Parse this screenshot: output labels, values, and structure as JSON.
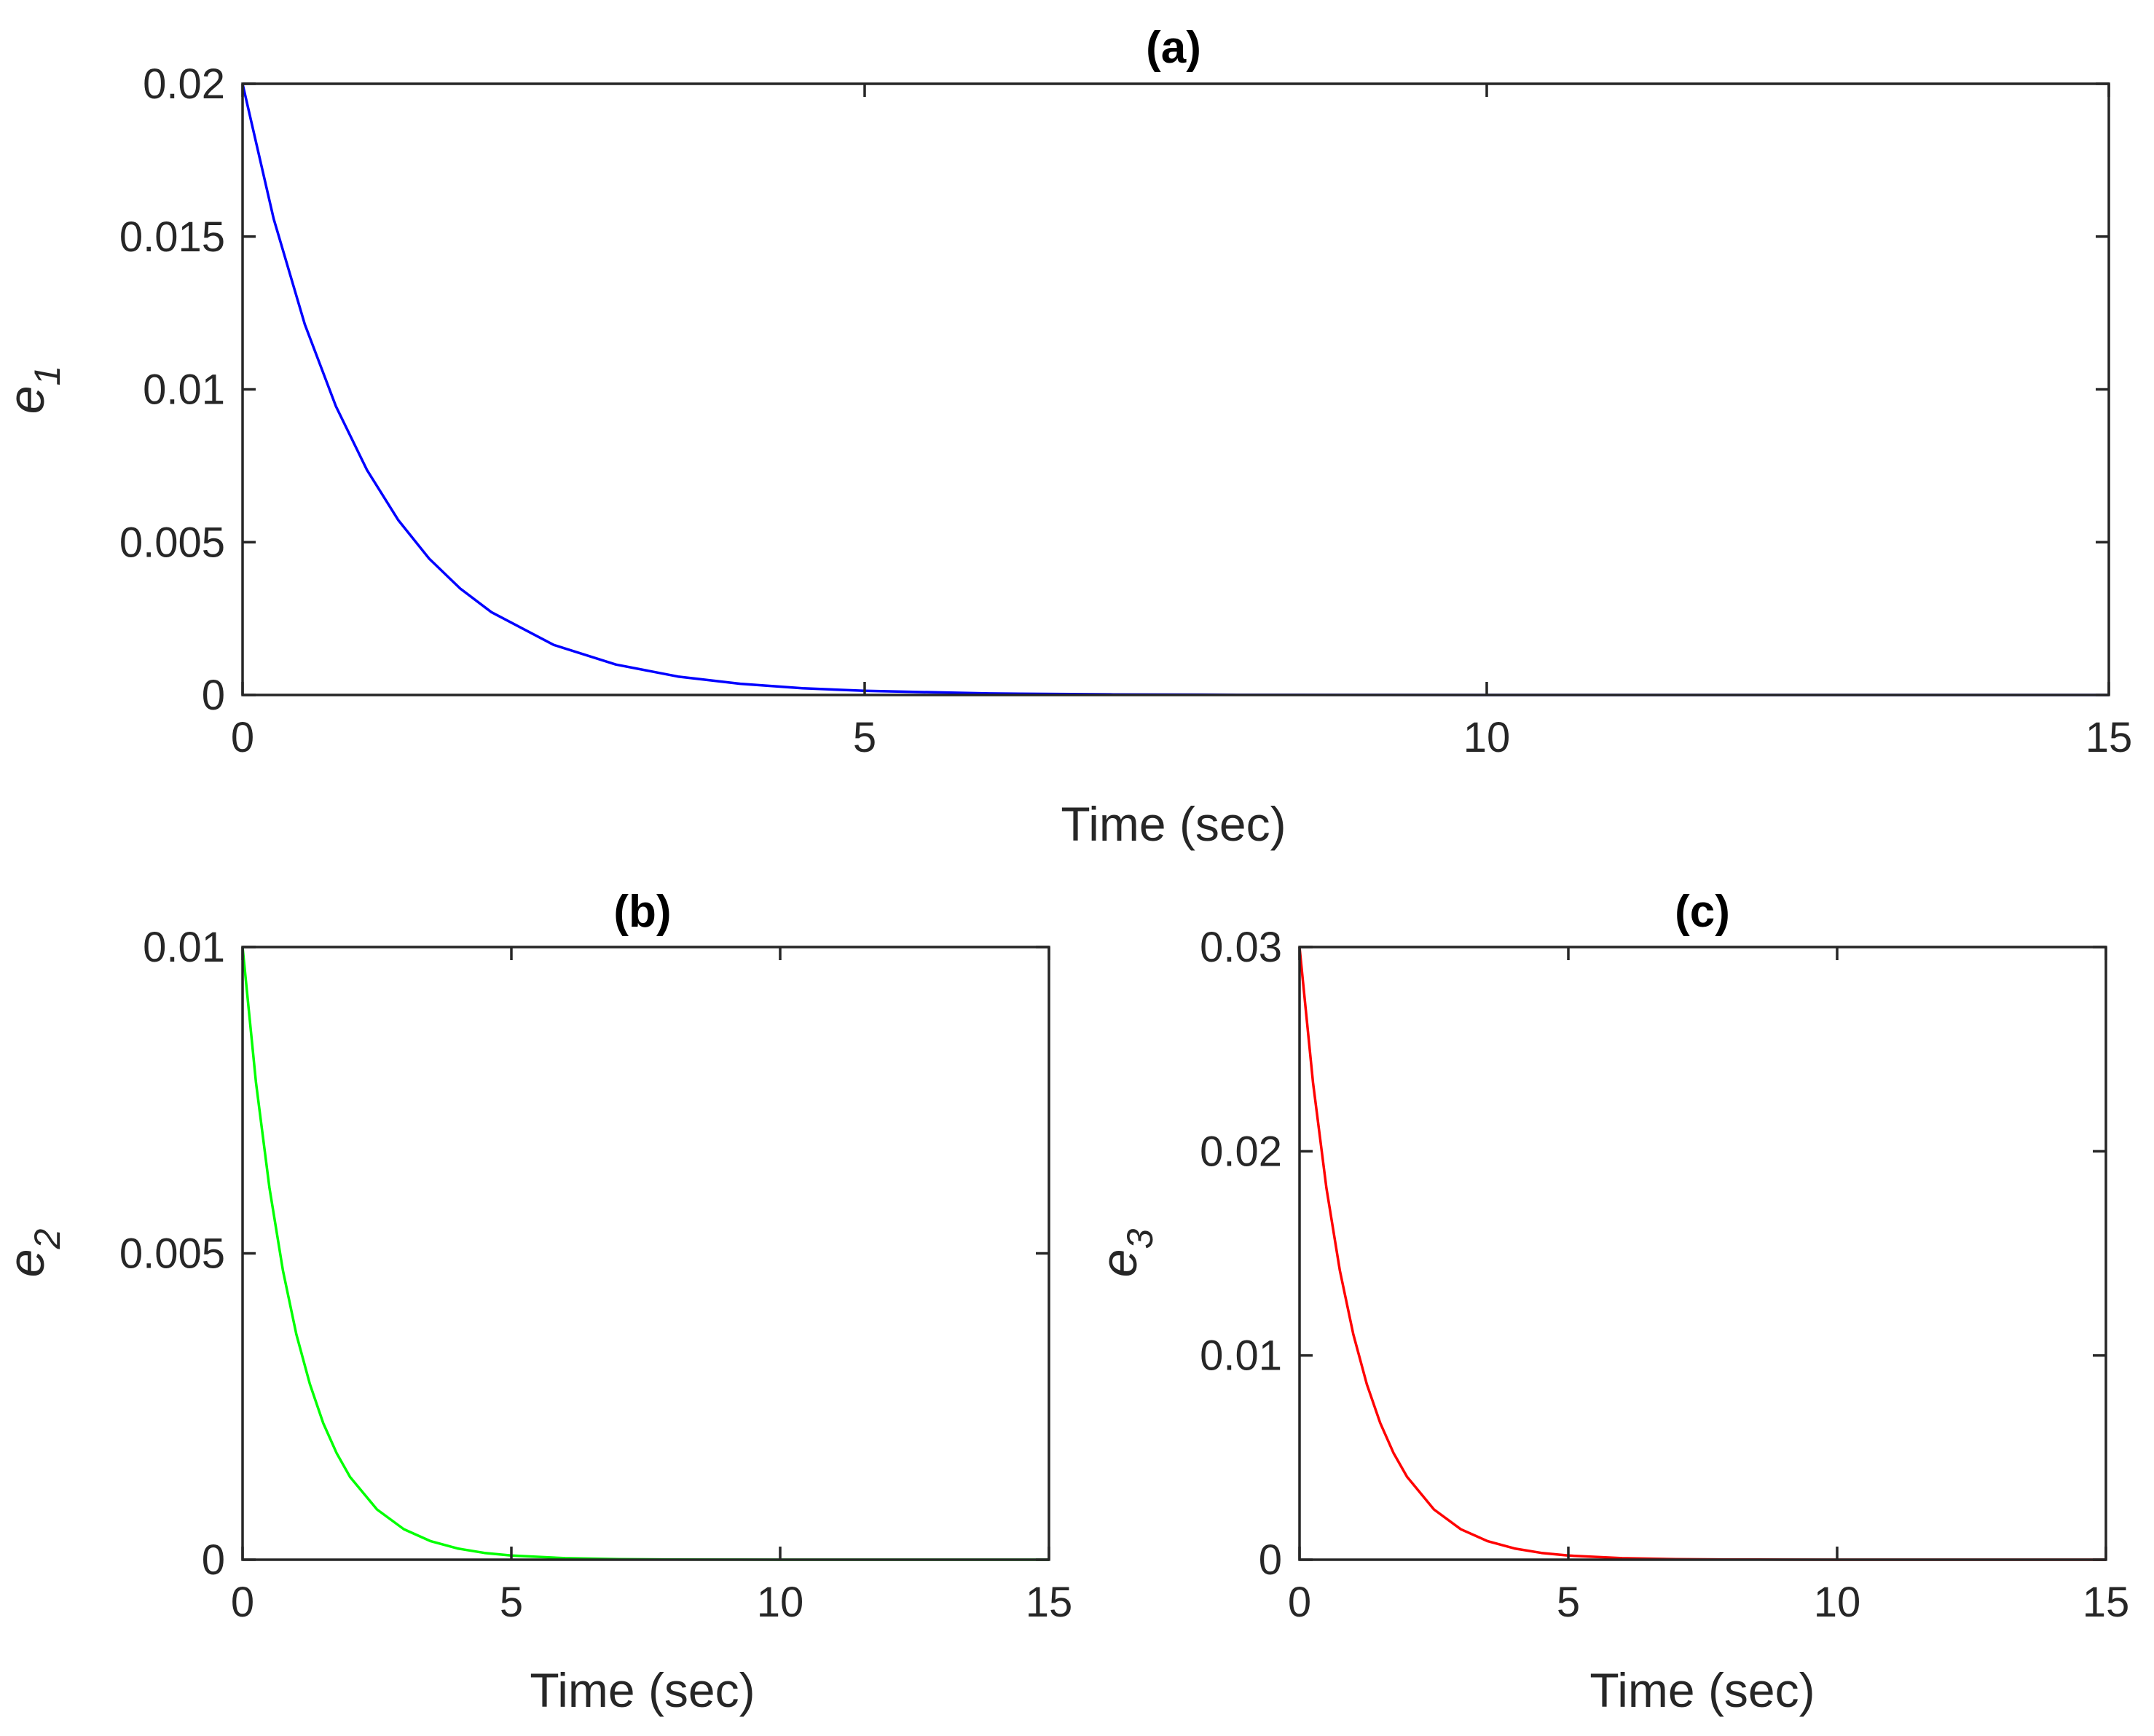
{
  "chart_data": [
    {
      "type": "line",
      "id": "a",
      "title": "(a)",
      "xlabel": "Time (sec)",
      "ylabel": {
        "base": "e",
        "sub": "1"
      },
      "xlim": [
        0,
        15
      ],
      "ylim": [
        0,
        0.02
      ],
      "xticks": [
        0,
        5,
        10,
        15
      ],
      "xtick_labels": [
        "0",
        "5",
        "10",
        "15"
      ],
      "yticks": [
        0,
        0.005,
        0.01,
        0.015,
        0.02
      ],
      "ytick_labels": [
        "0",
        "0.005",
        "0.01",
        "0.015",
        "0.02"
      ],
      "grid": false,
      "series": [
        {
          "name": "e1",
          "color": "#0000ff",
          "x": [
            0,
            0.25,
            0.5,
            0.75,
            1,
            1.25,
            1.5,
            1.75,
            2,
            2.5,
            3,
            3.5,
            4,
            4.5,
            5,
            6,
            7,
            8,
            9,
            10,
            11,
            12,
            13,
            14,
            15
          ],
          "y": [
            0.02,
            0.01558,
            0.01213,
            0.00945,
            0.00736,
            0.00573,
            0.00446,
            0.00348,
            0.00271,
            0.00164,
            0.000996,
            0.000604,
            0.000366,
            0.000222,
            0.000135,
            4.96e-05,
            1.82e-05,
            6.7e-06,
            2.5e-06,
            9e-07,
            3e-07,
            1e-07,
            0.0,
            0.0,
            0.0
          ]
        }
      ]
    },
    {
      "type": "line",
      "id": "b",
      "title": "(b)",
      "xlabel": "Time (sec)",
      "ylabel": {
        "base": "e",
        "sub": "2"
      },
      "xlim": [
        0,
        15
      ],
      "ylim": [
        0,
        0.01
      ],
      "xticks": [
        0,
        5,
        10,
        15
      ],
      "xtick_labels": [
        "0",
        "5",
        "10",
        "15"
      ],
      "yticks": [
        0,
        0.005,
        0.01
      ],
      "ytick_labels": [
        "0",
        "0.005",
        "0.01"
      ],
      "grid": false,
      "series": [
        {
          "name": "e2",
          "color": "#00ff00",
          "x": [
            0,
            0.25,
            0.5,
            0.75,
            1,
            1.25,
            1.5,
            1.75,
            2,
            2.5,
            3,
            3.5,
            4,
            4.5,
            5,
            6,
            7,
            8,
            9,
            10,
            11,
            12,
            13,
            14,
            15
          ],
          "y": [
            0.01,
            0.00779,
            0.00607,
            0.00472,
            0.00368,
            0.00287,
            0.00223,
            0.00174,
            0.00135,
            0.00082,
            0.000498,
            0.000302,
            0.000183,
            0.000111,
            6.74e-05,
            2.48e-05,
            9.1e-06,
            3.4e-06,
            1.2e-06,
            5e-07,
            2e-07,
            0.0,
            0.0,
            0.0,
            0.0
          ]
        }
      ]
    },
    {
      "type": "line",
      "id": "c",
      "title": "(c)",
      "xlabel": "Time (sec)",
      "ylabel": {
        "base": "e",
        "sub": "3"
      },
      "xlim": [
        0,
        15
      ],
      "ylim": [
        0,
        0.03
      ],
      "xticks": [
        0,
        5,
        10,
        15
      ],
      "xtick_labels": [
        "0",
        "5",
        "10",
        "15"
      ],
      "yticks": [
        0,
        0.01,
        0.02,
        0.03
      ],
      "ytick_labels": [
        "0",
        "0.01",
        "0.02",
        "0.03"
      ],
      "grid": false,
      "series": [
        {
          "name": "e3",
          "color": "#ff0000",
          "x": [
            0,
            0.25,
            0.5,
            0.75,
            1,
            1.25,
            1.5,
            1.75,
            2,
            2.5,
            3,
            3.5,
            4,
            4.5,
            5,
            6,
            7,
            8,
            9,
            10,
            11,
            12,
            13,
            14,
            15
          ],
          "y": [
            0.03,
            0.02336,
            0.0182,
            0.01417,
            0.01104,
            0.0086,
            0.0067,
            0.00521,
            0.00406,
            0.00246,
            0.00149,
            0.000906,
            0.000549,
            0.000333,
            0.000202,
            7.44e-05,
            2.74e-05,
            1.01e-05,
            3.7e-06,
            1.4e-06,
            5e-07,
            2e-07,
            0.0,
            0.0,
            0.0
          ]
        }
      ]
    }
  ]
}
